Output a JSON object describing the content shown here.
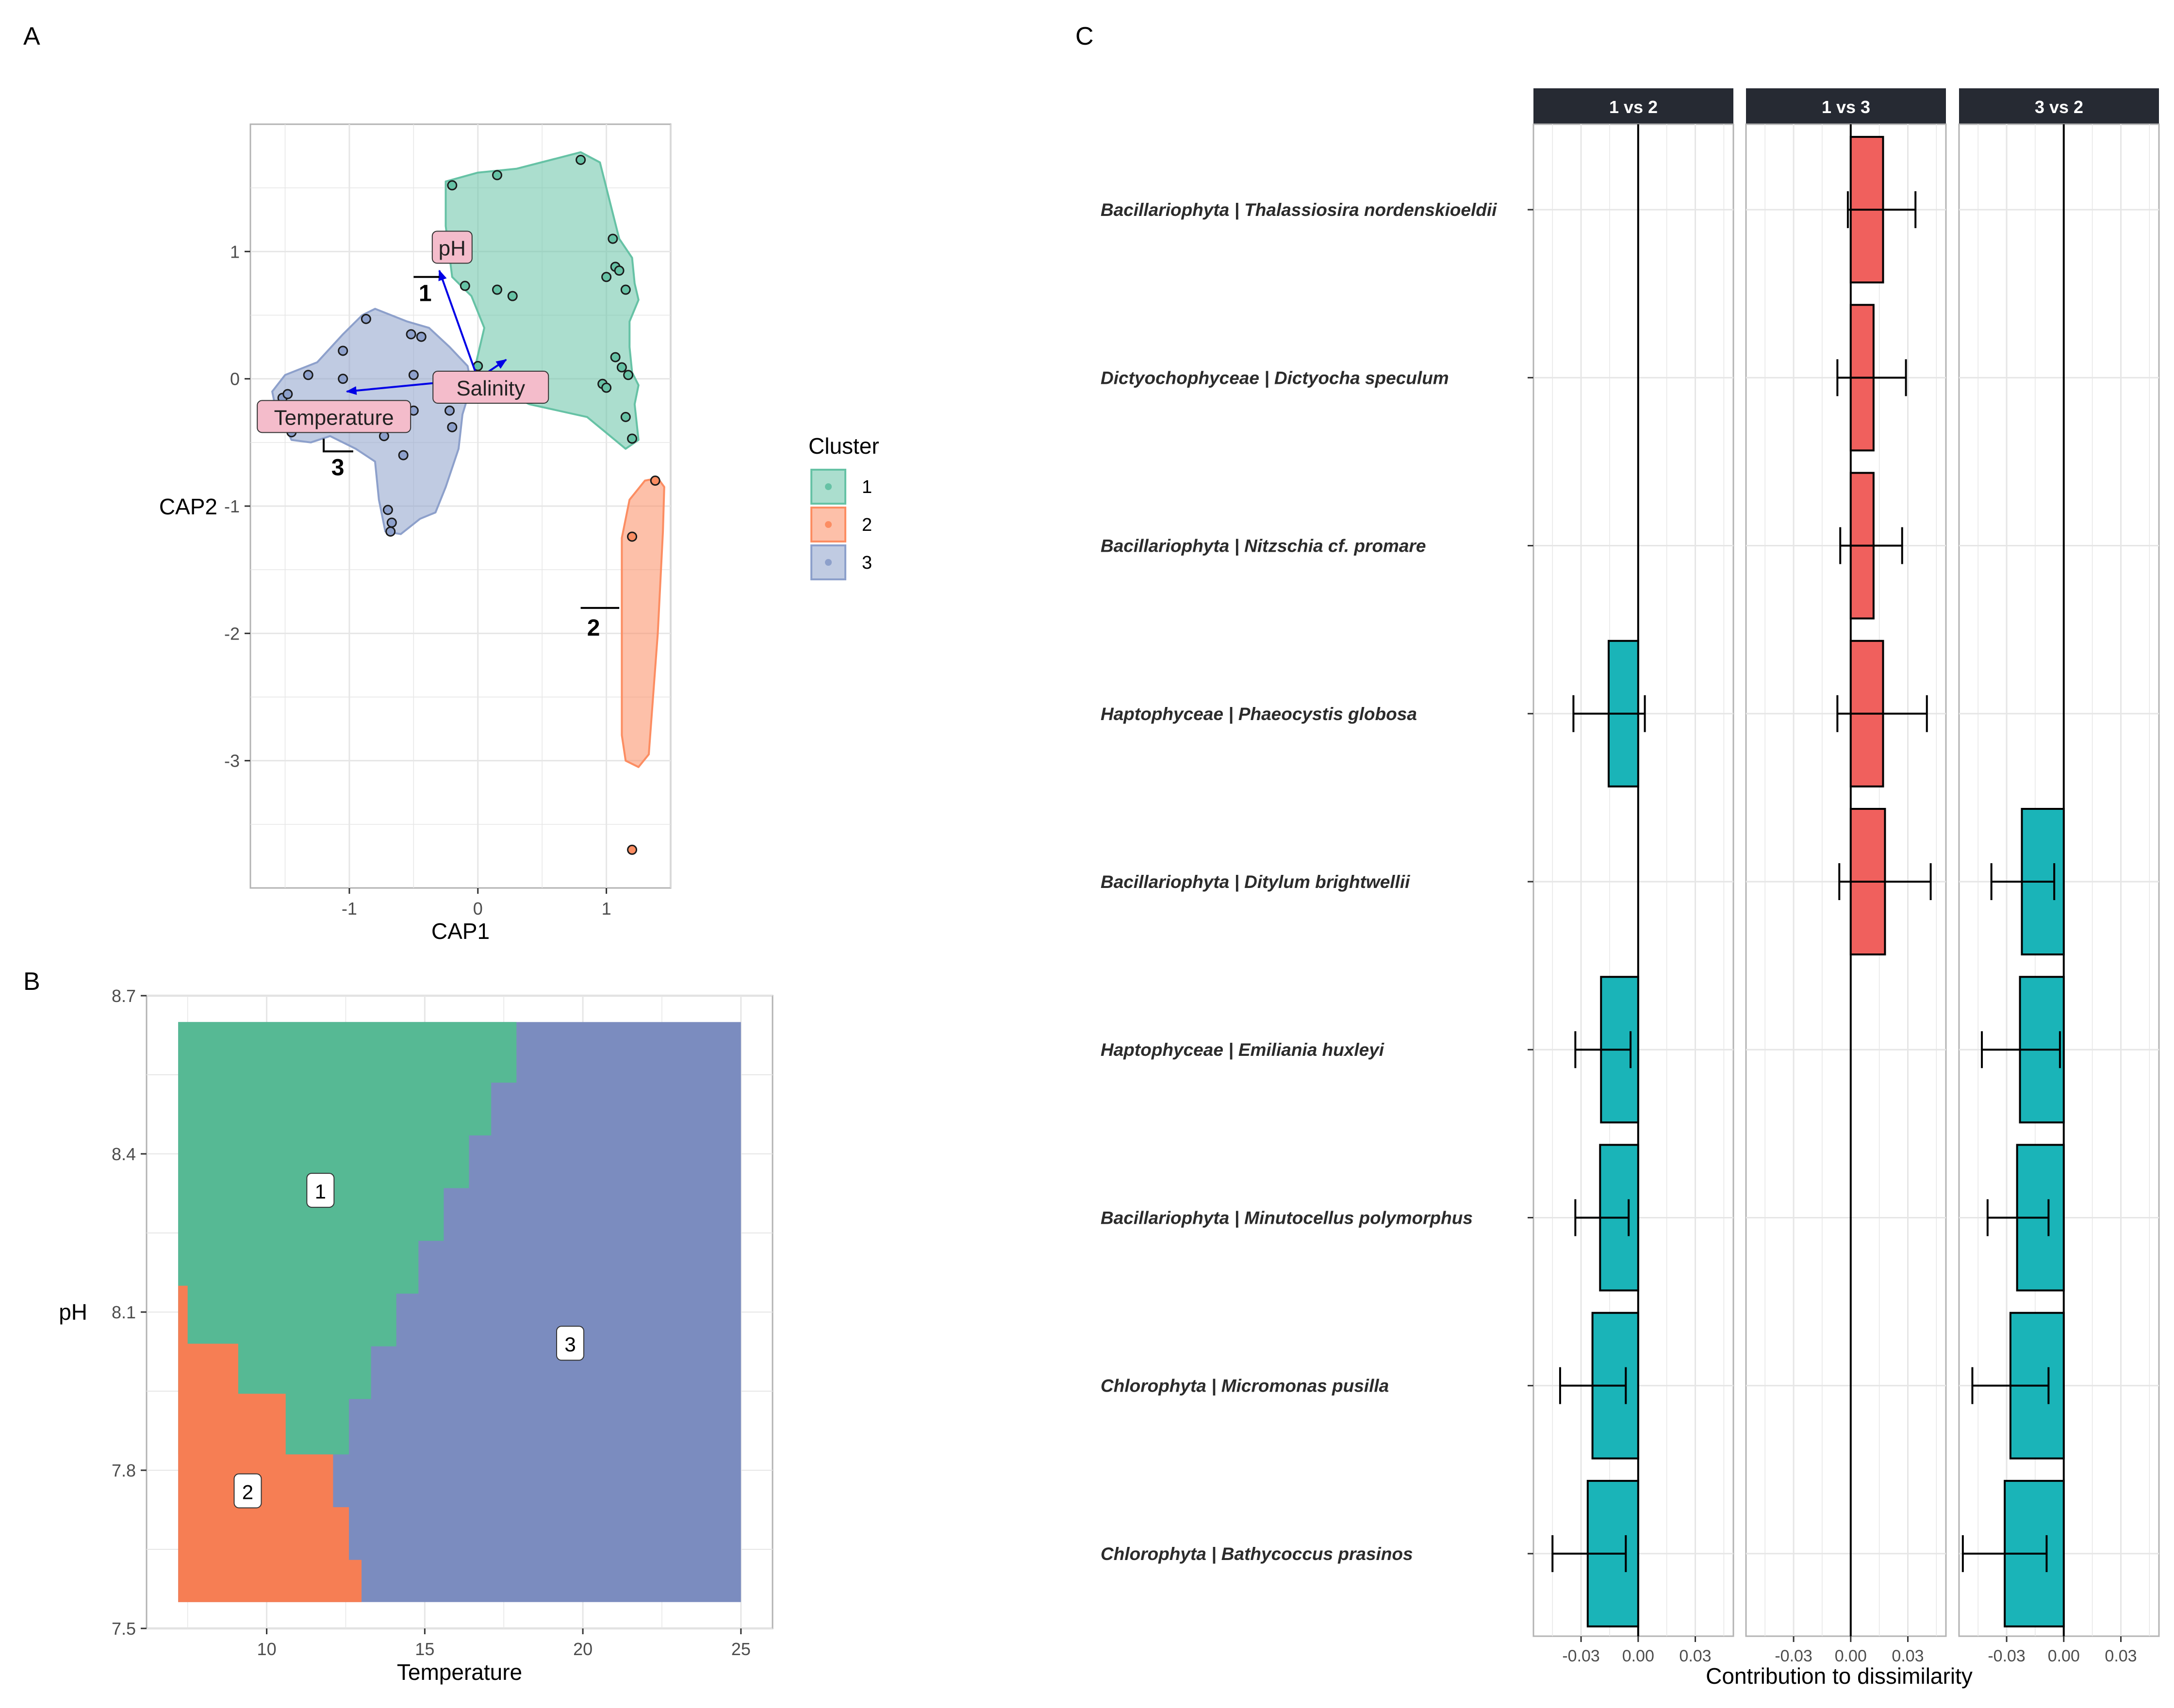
{
  "panel_labels": {
    "a": "A",
    "b": "B",
    "c": "C"
  },
  "colors": {
    "cluster1": "#66c2a5",
    "cluster2": "#fc8d62",
    "cluster3": "#8da0cb",
    "tile1": "#56b994",
    "tile2": "#f67e54",
    "tile3": "#7b8cbf",
    "bar_pos": "#f0605d",
    "bar_neg": "#1ab4b8",
    "arrow": "#0000e6",
    "strip": "#262a33",
    "label_fill": "#f4bccb"
  },
  "chart_data": [
    {
      "type": "scatter",
      "panel": "A",
      "xlabel": "CAP1",
      "ylabel": "CAP2",
      "xlim": [
        -1.77,
        1.5
      ],
      "ylim": [
        -4.0,
        2.0
      ],
      "xticks": [
        -1,
        0,
        1
      ],
      "yticks": [
        1,
        0,
        -1,
        -2,
        -3
      ],
      "grid": true,
      "legend": {
        "title": "Cluster",
        "position": "right",
        "entries": [
          "1",
          "2",
          "3"
        ]
      },
      "series": [
        {
          "name": "1",
          "color_key": "cluster1",
          "points": [
            [
              -0.2,
              1.52
            ],
            [
              0.15,
              1.6
            ],
            [
              0.8,
              1.72
            ],
            [
              1.05,
              1.1
            ],
            [
              1.0,
              0.8
            ],
            [
              1.07,
              0.88
            ],
            [
              1.1,
              0.85
            ],
            [
              1.15,
              0.7
            ],
            [
              -0.1,
              0.73
            ],
            [
              0.15,
              0.7
            ],
            [
              0.27,
              0.65
            ],
            [
              0.0,
              0.1
            ],
            [
              1.07,
              0.17
            ],
            [
              1.12,
              0.09
            ],
            [
              1.17,
              0.03
            ],
            [
              0.97,
              -0.04
            ],
            [
              1.0,
              -0.07
            ],
            [
              1.15,
              -0.3
            ],
            [
              1.2,
              -0.47
            ]
          ],
          "hull": [
            [
              -0.25,
              1.55
            ],
            [
              0.0,
              1.62
            ],
            [
              0.3,
              1.65
            ],
            [
              0.8,
              1.78
            ],
            [
              0.95,
              1.7
            ],
            [
              1.05,
              1.3
            ],
            [
              1.1,
              1.1
            ],
            [
              1.2,
              0.95
            ],
            [
              1.22,
              0.75
            ],
            [
              1.25,
              0.62
            ],
            [
              1.18,
              0.45
            ],
            [
              1.18,
              0.25
            ],
            [
              1.2,
              0.05
            ],
            [
              1.25,
              -0.05
            ],
            [
              1.22,
              -0.2
            ],
            [
              1.25,
              -0.48
            ],
            [
              1.15,
              -0.55
            ],
            [
              0.85,
              -0.3
            ],
            [
              0.4,
              -0.2
            ],
            [
              0.1,
              -0.05
            ],
            [
              -0.02,
              0.1
            ],
            [
              0.05,
              0.4
            ],
            [
              -0.05,
              0.65
            ],
            [
              -0.2,
              0.8
            ],
            [
              -0.25,
              1.2
            ]
          ]
        },
        {
          "name": "2",
          "color_key": "cluster2",
          "points": [
            [
              1.38,
              -0.8
            ],
            [
              1.2,
              -1.24
            ],
            [
              1.2,
              -3.7
            ]
          ],
          "hull": [
            [
              1.3,
              -0.8
            ],
            [
              1.4,
              -0.78
            ],
            [
              1.45,
              -0.85
            ],
            [
              1.44,
              -1.2
            ],
            [
              1.4,
              -2.0
            ],
            [
              1.33,
              -2.95
            ],
            [
              1.25,
              -3.05
            ],
            [
              1.15,
              -3.0
            ],
            [
              1.12,
              -2.8
            ],
            [
              1.12,
              -1.25
            ],
            [
              1.18,
              -0.95
            ]
          ]
        },
        {
          "name": "3",
          "color_key": "cluster3",
          "points": [
            [
              -0.87,
              0.47
            ],
            [
              -1.05,
              0.22
            ],
            [
              -0.52,
              0.35
            ],
            [
              -0.44,
              0.33
            ],
            [
              -1.32,
              0.03
            ],
            [
              -1.05,
              0.0
            ],
            [
              -0.5,
              0.03
            ],
            [
              -1.52,
              -0.15
            ],
            [
              -1.48,
              -0.12
            ],
            [
              -1.43,
              -0.22
            ],
            [
              -1.38,
              -0.25
            ],
            [
              -1.45,
              -0.42
            ],
            [
              -0.5,
              -0.25
            ],
            [
              -0.22,
              -0.25
            ],
            [
              -0.73,
              -0.45
            ],
            [
              -0.58,
              -0.6
            ],
            [
              -0.2,
              -0.38
            ],
            [
              -0.7,
              -1.03
            ],
            [
              -0.67,
              -1.13
            ],
            [
              -0.68,
              -1.2
            ]
          ],
          "hull": [
            [
              -1.6,
              -0.1
            ],
            [
              -1.58,
              -0.2
            ],
            [
              -1.45,
              -0.48
            ],
            [
              -1.3,
              -0.5
            ],
            [
              -1.15,
              -0.45
            ],
            [
              -0.95,
              -0.55
            ],
            [
              -0.8,
              -0.65
            ],
            [
              -0.77,
              -0.95
            ],
            [
              -0.72,
              -1.2
            ],
            [
              -0.6,
              -1.22
            ],
            [
              -0.45,
              -1.1
            ],
            [
              -0.33,
              -1.05
            ],
            [
              -0.25,
              -0.85
            ],
            [
              -0.15,
              -0.55
            ],
            [
              -0.12,
              -0.28
            ],
            [
              -0.05,
              -0.05
            ],
            [
              -0.08,
              0.1
            ],
            [
              -0.22,
              0.25
            ],
            [
              -0.38,
              0.4
            ],
            [
              -0.55,
              0.45
            ],
            [
              -0.8,
              0.55
            ],
            [
              -0.9,
              0.5
            ],
            [
              -1.05,
              0.35
            ],
            [
              -1.25,
              0.13
            ],
            [
              -1.5,
              0.03
            ]
          ]
        }
      ],
      "arrows": [
        {
          "label": "pH",
          "end": [
            -0.3,
            0.85
          ],
          "label_pos": [
            -0.2,
            1.03
          ]
        },
        {
          "label": "Salinity",
          "end": [
            0.22,
            0.15
          ],
          "label_pos": [
            0.1,
            -0.07
          ]
        },
        {
          "label": "Temperature",
          "end": [
            -1.02,
            -0.1
          ],
          "label_pos": [
            -1.12,
            -0.3
          ]
        }
      ],
      "cluster_labels": [
        {
          "text": "1",
          "pos": [
            -0.41,
            0.68
          ],
          "bracket": [
            [
              -0.5,
              0.8
            ],
            [
              -0.3,
              0.8
            ]
          ]
        },
        {
          "text": "2",
          "pos": [
            0.9,
            -1.95
          ],
          "bracket": [
            [
              0.8,
              -1.8
            ],
            [
              1.1,
              -1.8
            ]
          ]
        },
        {
          "text": "3",
          "pos": [
            -1.09,
            -0.69
          ],
          "bracket": [
            [
              -1.2,
              -0.47
            ],
            [
              -1.2,
              -0.57
            ],
            [
              -0.97,
              -0.57
            ]
          ]
        }
      ]
    },
    {
      "type": "heatmap",
      "panel": "B",
      "xlabel": "Temperature",
      "ylabel": "pH",
      "xlim": [
        6.2,
        26.0
      ],
      "ylim": [
        7.5,
        8.7
      ],
      "xticks": [
        10,
        15,
        20,
        25
      ],
      "yticks": [
        7.5,
        7.8,
        8.1,
        8.4,
        8.7
      ],
      "grid": true,
      "regions": [
        {
          "cluster": "3",
          "color_key": "tile3",
          "bounds": {
            "x": [
              7.2,
              25.0
            ],
            "y": [
              7.55,
              8.65
            ]
          }
        },
        {
          "cluster": "1",
          "color_key": "tile1",
          "polygon": [
            [
              7.2,
              8.65
            ],
            [
              17.9,
              8.65
            ],
            [
              17.9,
              8.535
            ],
            [
              17.1,
              8.535
            ],
            [
              17.1,
              8.435
            ],
            [
              16.4,
              8.435
            ],
            [
              16.4,
              8.335
            ],
            [
              15.6,
              8.335
            ],
            [
              15.6,
              8.235
            ],
            [
              14.8,
              8.235
            ],
            [
              14.8,
              8.135
            ],
            [
              14.1,
              8.135
            ],
            [
              14.1,
              8.035
            ],
            [
              13.3,
              8.035
            ],
            [
              13.3,
              7.935
            ],
            [
              12.6,
              7.935
            ],
            [
              12.6,
              7.83
            ],
            [
              7.2,
              7.83
            ]
          ]
        },
        {
          "cluster": "2",
          "color_key": "tile2",
          "polygon": [
            [
              7.2,
              8.15
            ],
            [
              7.5,
              8.15
            ],
            [
              7.5,
              8.04
            ],
            [
              9.1,
              8.04
            ],
            [
              9.1,
              7.945
            ],
            [
              10.6,
              7.945
            ],
            [
              10.6,
              7.83
            ],
            [
              12.1,
              7.83
            ],
            [
              12.1,
              7.73
            ],
            [
              12.6,
              7.73
            ],
            [
              12.6,
              7.63
            ],
            [
              13.0,
              7.63
            ],
            [
              13.0,
              7.55
            ],
            [
              7.2,
              7.55
            ]
          ]
        }
      ],
      "labels": [
        {
          "text": "1",
          "x": 11.7,
          "y": 8.33
        },
        {
          "text": "2",
          "x": 9.4,
          "y": 7.76
        },
        {
          "text": "3",
          "x": 19.6,
          "y": 8.04
        }
      ]
    },
    {
      "type": "bar",
      "panel": "C",
      "orientation": "horizontal",
      "xlabel": "Contribution to dissimilarity",
      "xlim": [
        -0.055,
        0.05
      ],
      "xticks": [
        -0.03,
        0.0,
        0.03
      ],
      "xtick_labels": [
        "-0.03",
        "0.00",
        "0.03"
      ],
      "grid": true,
      "facets": [
        "1 vs 2",
        "1 vs 3",
        "3 vs 2"
      ],
      "categories": [
        "Bacillariophyta | Thalassiosira nordenskioeldii",
        "Dictyochophyceae | Dictyocha speculum",
        "Bacillariophyta | Nitzschia cf. promare",
        "Haptophyceae | Phaeocystis globosa",
        "Bacillariophyta | Ditylum brightwellii",
        "Haptophyceae | Emiliania huxleyi",
        "Bacillariophyta | Minutocellus polymorphus",
        "Chlorophyta | Micromonas pusilla",
        "Chlorophyta | Bathycoccus prasinos"
      ],
      "series": [
        {
          "name": "1 vs 2",
          "values": [
            null,
            null,
            null,
            -0.0155,
            null,
            -0.0195,
            -0.02,
            -0.024,
            -0.0265
          ],
          "error_low": [
            null,
            null,
            null,
            -0.034,
            null,
            -0.033,
            -0.033,
            -0.041,
            -0.045
          ],
          "error_high": [
            null,
            null,
            null,
            0.0035,
            null,
            -0.004,
            -0.005,
            -0.0065,
            -0.0065
          ]
        },
        {
          "name": "1 vs 3",
          "values": [
            0.017,
            0.012,
            0.012,
            0.017,
            0.018,
            null,
            null,
            null,
            null
          ],
          "error_low": [
            -0.0015,
            -0.007,
            -0.0055,
            -0.007,
            -0.006,
            null,
            null,
            null,
            null
          ],
          "error_high": [
            0.034,
            0.029,
            0.027,
            0.04,
            0.042,
            null,
            null,
            null,
            null
          ]
        },
        {
          "name": "3 vs 2",
          "values": [
            null,
            null,
            null,
            null,
            -0.022,
            -0.023,
            -0.0245,
            -0.028,
            -0.031
          ],
          "error_low": [
            null,
            null,
            null,
            null,
            -0.038,
            -0.043,
            -0.04,
            -0.048,
            -0.053
          ],
          "error_high": [
            null,
            null,
            null,
            null,
            -0.005,
            -0.002,
            -0.008,
            -0.008,
            -0.009
          ]
        }
      ]
    }
  ]
}
